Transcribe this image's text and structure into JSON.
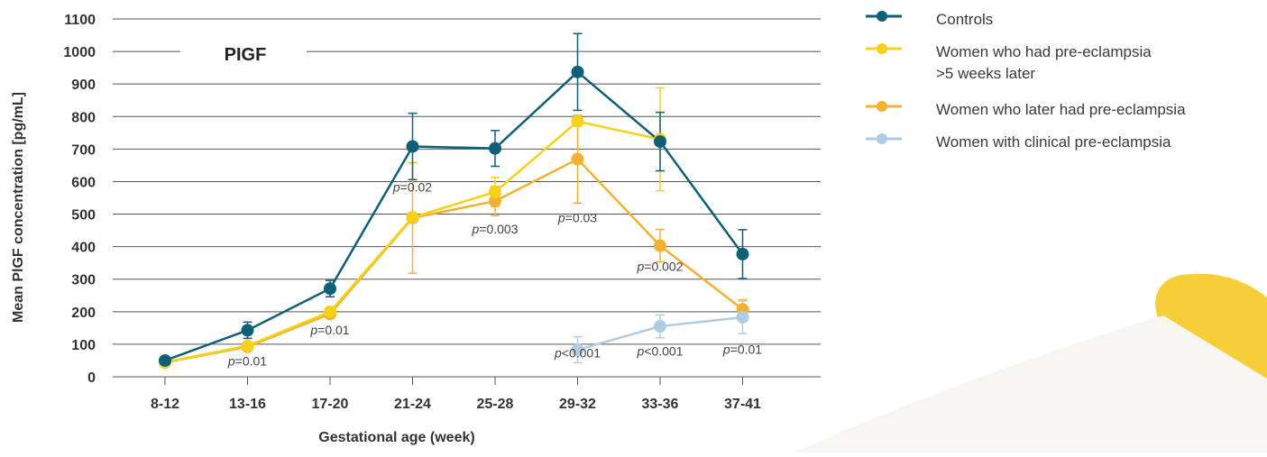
{
  "chart_data": {
    "type": "line",
    "title": "PIGF",
    "xlabel": "Gestational age (week)",
    "ylabel": "Mean PlGF concentration [pg/mL]",
    "categories": [
      "8-12",
      "13-16",
      "17-20",
      "21-24",
      "25-28",
      "29-32",
      "33-36",
      "37-41"
    ],
    "ylim": [
      0,
      1100
    ],
    "yticks": [
      0,
      100,
      200,
      300,
      400,
      500,
      600,
      700,
      800,
      900,
      1000,
      1100
    ],
    "grid": "horizontal",
    "legend_position": "right",
    "series": [
      {
        "name": "Controls",
        "color": "#0e5f78",
        "values": [
          50,
          143,
          271,
          708,
          702,
          937,
          723,
          377
        ],
        "error": [
          0,
          25,
          25,
          102,
          55,
          118,
          90,
          75
        ]
      },
      {
        "name": "Women who had pre-eclampsia",
        "name_line2": ">5 weeks later",
        "color": "#f6d118",
        "values": [
          45,
          95,
          200,
          490,
          568,
          785,
          730,
          null
        ],
        "error": [
          0,
          0,
          0,
          0,
          45,
          0,
          158,
          0
        ]
      },
      {
        "name": "Women who later had pre-eclampsia",
        "color": "#f3b132",
        "values": [
          44,
          92,
          193,
          488,
          540,
          669,
          403,
          207
        ],
        "error": [
          0,
          0,
          0,
          170,
          45,
          135,
          50,
          30
        ]
      },
      {
        "name": "Women with clinical pre-eclampsia",
        "color": "#aecde3",
        "values": [
          null,
          null,
          null,
          null,
          null,
          83,
          155,
          183
        ],
        "error": [
          0,
          0,
          0,
          0,
          0,
          40,
          35,
          50
        ]
      }
    ],
    "annotations": [
      {
        "prefix": "p",
        "text": "=0.01",
        "x": "13-16",
        "y": 35
      },
      {
        "prefix": "p",
        "text": "=0.01",
        "x": "17-20",
        "y": 130
      },
      {
        "prefix": "p",
        "text": "=0.02",
        "x": "21-24",
        "y": 570
      },
      {
        "prefix": "p",
        "text": "=0.003",
        "x": "25-28",
        "y": 440
      },
      {
        "prefix": "p",
        "text": "=0.03",
        "x": "29-32",
        "y": 475
      },
      {
        "prefix": "p",
        "text": "=0.002",
        "x": "33-36",
        "y": 325
      },
      {
        "prefix": "p",
        "text": "<0.001",
        "x": "29-32",
        "y": 60
      },
      {
        "prefix": "p",
        "text": "<0.001",
        "x": "33-36",
        "y": 65
      },
      {
        "prefix": "p",
        "text": "=0.01",
        "x": "37-41",
        "y": 70
      }
    ]
  }
}
